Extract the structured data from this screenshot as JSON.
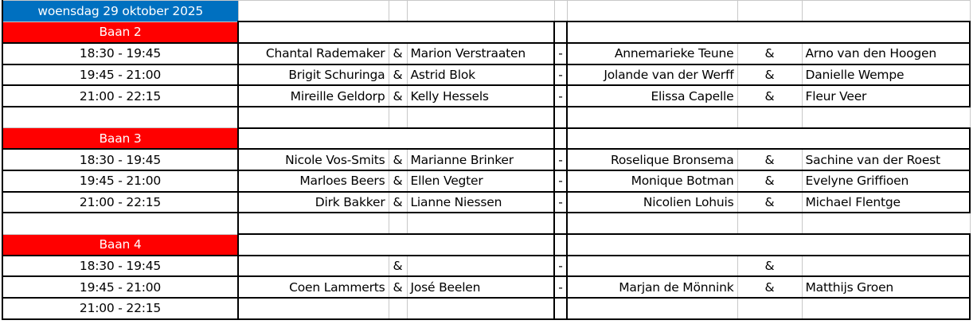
{
  "date_header": "woensdag 29 oktober 2025",
  "colors": {
    "date_bg": "#0070c0",
    "court_bg": "#ff0000"
  },
  "courts": [
    {
      "name": "Baan 2",
      "matches": [
        {
          "time": "18:30 - 19:45",
          "team1_player1": "Chantal Rademaker",
          "amp1": "&",
          "team1_player2": "Marion Verstraaten",
          "vs": "-",
          "team2_player1": "Annemarieke Teune",
          "amp2": "&",
          "team2_player2": "Arno van den Hoogen"
        },
        {
          "time": "19:45 - 21:00",
          "team1_player1": "Brigit Schuringa",
          "amp1": "&",
          "team1_player2": "Astrid Blok",
          "vs": "-",
          "team2_player1": "Jolande van der Werff",
          "amp2": "&",
          "team2_player2": "Danielle Wempe"
        },
        {
          "time": "21:00 - 22:15",
          "team1_player1": "Mireille Geldorp",
          "amp1": "&",
          "team1_player2": "Kelly Hessels",
          "vs": "-",
          "team2_player1": "Elissa Capelle",
          "amp2": "&",
          "team2_player2": "Fleur Veer"
        }
      ]
    },
    {
      "name": "Baan 3",
      "matches": [
        {
          "time": "18:30 - 19:45",
          "team1_player1": "Nicole Vos-Smits",
          "amp1": "&",
          "team1_player2": "Marianne Brinker",
          "vs": "-",
          "team2_player1": "Roselique Bronsema",
          "amp2": "&",
          "team2_player2": "Sachine van der Roest"
        },
        {
          "time": "19:45 - 21:00",
          "team1_player1": "Marloes Beers",
          "amp1": "&",
          "team1_player2": "Ellen Vegter",
          "vs": "-",
          "team2_player1": "Monique Botman",
          "amp2": "&",
          "team2_player2": "Evelyne Griffioen"
        },
        {
          "time": "21:00 - 22:15",
          "team1_player1": "Dirk Bakker",
          "amp1": "&",
          "team1_player2": "Lianne Niessen",
          "vs": "-",
          "team2_player1": "Nicolien Lohuis",
          "amp2": "&",
          "team2_player2": "Michael Flentge"
        }
      ]
    },
    {
      "name": "Baan 4",
      "matches": [
        {
          "time": "18:30 - 19:45",
          "team1_player1": "",
          "amp1": "&",
          "team1_player2": "",
          "vs": "-",
          "team2_player1": "",
          "amp2": "&",
          "team2_player2": ""
        },
        {
          "time": "19:45 - 21:00",
          "team1_player1": "Coen Lammerts",
          "amp1": "&",
          "team1_player2": "José Beelen",
          "vs": "-",
          "team2_player1": "Marjan de Mönnink",
          "amp2": "&",
          "team2_player2": "Matthijs Groen"
        },
        {
          "time": "21:00 - 22:15",
          "team1_player1": "",
          "amp1": "",
          "team1_player2": "",
          "vs": "",
          "team2_player1": "",
          "amp2": "",
          "team2_player2": ""
        }
      ]
    }
  ]
}
